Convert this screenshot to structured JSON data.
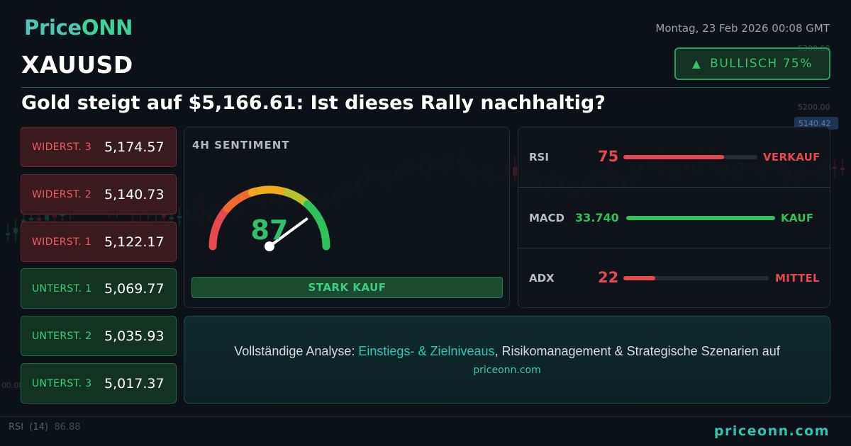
{
  "brand": {
    "logo_text": "PriceONN",
    "logo_a": "Price",
    "logo_b": "ONN"
  },
  "header": {
    "symbol": "XAUUSD",
    "datetime": "Montag, 23 Feb 2026 00:08 GMT",
    "badge_icon": "up-triangle-icon",
    "badge_text": "BULLISCH 75%",
    "headline": "Gold steigt auf $5,166.61: Ist dieses Rally nachhaltig?"
  },
  "levels": [
    {
      "label": "WIDERST. 3",
      "value": "5,174.57",
      "kind": "resistance"
    },
    {
      "label": "WIDERST. 2",
      "value": "5,140.73",
      "kind": "resistance"
    },
    {
      "label": "WIDERST. 1",
      "value": "5,122.17",
      "kind": "resistance"
    },
    {
      "label": "UNTERST. 1",
      "value": "5,069.77",
      "kind": "support"
    },
    {
      "label": "UNTERST. 2",
      "value": "5,035.93",
      "kind": "support"
    },
    {
      "label": "UNTERST. 3",
      "value": "5,017.37",
      "kind": "support"
    }
  ],
  "sentiment": {
    "title": "4H SENTIMENT",
    "score": "87",
    "score_value": 87,
    "verdict": "STARK KAUF"
  },
  "indicators": [
    {
      "name": "RSI",
      "value": "75",
      "level": 0.75,
      "signal": "VERKAUF",
      "color": "#e5484d"
    },
    {
      "name": "MACD",
      "value": "33.740",
      "level": 1.0,
      "signal": "KAUF",
      "color": "#2fc25b"
    },
    {
      "name": "ADX",
      "value": "22",
      "level": 0.22,
      "signal": "MITTEL",
      "color": "#e5484d"
    }
  ],
  "promo": {
    "prefix": "Vollständige Analyse: ",
    "highlight": "Einstiegs- & Zielniveaus",
    "suffix": ", Risikomanagement & Strategische Szenarien auf",
    "url": "priceonn.com"
  },
  "background": {
    "price_1": "5300.00",
    "price_2": "5200.00",
    "price_tag": "5140.42",
    "price_3": "00.00",
    "rsi_label": "RSI",
    "rsi_period": "(14)",
    "rsi_value": "86.88"
  },
  "footer": {
    "url": "priceonn.com"
  },
  "colors": {
    "bullish": "#36c46a",
    "bearish": "#ef5d61",
    "accent": "#35c7b3"
  }
}
